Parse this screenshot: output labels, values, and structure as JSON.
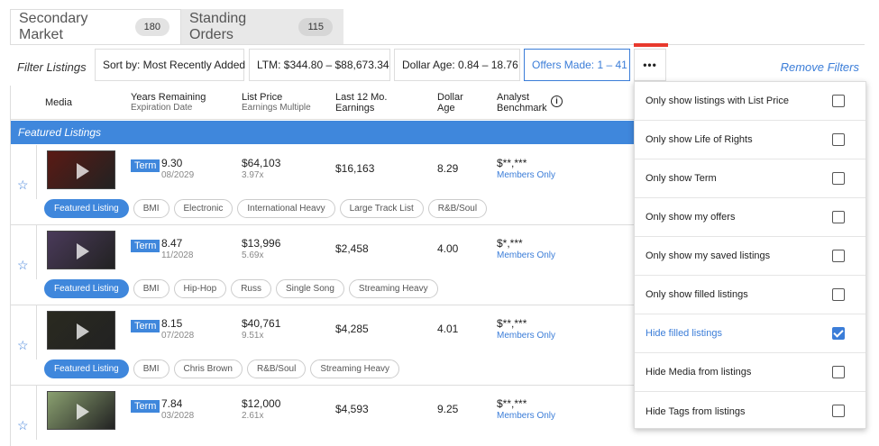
{
  "tabs": [
    {
      "label": "Secondary Market",
      "count": "180"
    },
    {
      "label": "Standing Orders",
      "count": "115"
    }
  ],
  "filters": {
    "label": "Filter Listings",
    "sort": "Sort by: Most Recently Added",
    "ltm": "LTM: $344.80 – $88,673.34",
    "dollar_age": "Dollar Age: 0.84 – 18.76",
    "offers_made": "Offers Made: 1 – 41",
    "more": "•••",
    "remove": "Remove Filters"
  },
  "columns": {
    "media": "Media",
    "years": "Years Remaining",
    "years_sub": "Expiration Date",
    "price": "List Price",
    "price_sub": "Earnings Multiple",
    "ltm_line1": "Last 12 Mo.",
    "ltm_line2": "Earnings",
    "age_line1": "Dollar",
    "age_line2": "Age",
    "bench_line1": "Analyst",
    "bench_line2": "Benchmark",
    "info_icon": "i"
  },
  "featured_header": "Featured Listings",
  "term_label": "Term",
  "members_only": "Members Only",
  "rows": [
    {
      "years": "9.30",
      "exp": "08/2029",
      "price": "$64,103",
      "mult": "3.97x",
      "ltm": "$16,163",
      "age": "8.29",
      "bench": "$**,***",
      "tags": [
        "Featured Listing",
        "BMI",
        "Electronic",
        "International Heavy",
        "Large Track List",
        "R&B/Soul"
      ],
      "thumb_color": "#5a1a14"
    },
    {
      "years": "8.47",
      "exp": "11/2028",
      "price": "$13,996",
      "mult": "5.69x",
      "ltm": "$2,458",
      "age": "4.00",
      "bench": "$*,***",
      "tags": [
        "Featured Listing",
        "BMI",
        "Hip-Hop",
        "Russ",
        "Single Song",
        "Streaming Heavy"
      ],
      "thumb_color": "#4a3a5a"
    },
    {
      "years": "8.15",
      "exp": "07/2028",
      "price": "$40,761",
      "mult": "9.51x",
      "ltm": "$4,285",
      "age": "4.01",
      "bench": "$**,***",
      "tags": [
        "Featured Listing",
        "BMI",
        "Chris Brown",
        "R&B/Soul",
        "Streaming Heavy"
      ],
      "thumb_color": "#2a2a20"
    },
    {
      "years": "7.84",
      "exp": "03/2028",
      "price": "$12,000",
      "mult": "2.61x",
      "ltm": "$4,593",
      "age": "9.25",
      "bench": "$**,***",
      "tags": [],
      "thumb_color": "#8aa070"
    }
  ],
  "dropdown": [
    {
      "label": "Only show listings with List Price",
      "checked": false
    },
    {
      "label": "Only show Life of Rights",
      "checked": false
    },
    {
      "label": "Only show Term",
      "checked": false
    },
    {
      "label": "Only show my offers",
      "checked": false
    },
    {
      "label": "Only show my saved listings",
      "checked": false
    },
    {
      "label": "Only show filled listings",
      "checked": false
    },
    {
      "label": "Hide filled listings",
      "checked": true
    },
    {
      "label": "Hide Media from listings",
      "checked": false
    },
    {
      "label": "Hide Tags from listings",
      "checked": false
    }
  ],
  "colors": {
    "accent": "#3b7dd8",
    "featured_bar": "#3f87dc",
    "more_accent": "#e8392d"
  }
}
